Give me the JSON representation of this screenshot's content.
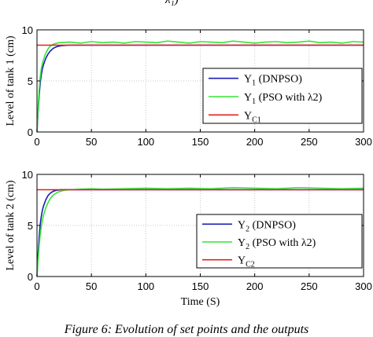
{
  "top_fragment": "λ₁)",
  "caption": "Figure 6: Evolution of set points and the outputs",
  "colors": {
    "dnpso": "#1c1cb4",
    "pso": "#33e633",
    "setpoint": "#e62020",
    "grid": "#c8c8c8"
  },
  "chart_data": [
    {
      "type": "line",
      "title": "",
      "ylabel": "Level of tank 1 (cm)",
      "xlabel": "",
      "xlim": [
        0,
        300
      ],
      "ylim": [
        0,
        10
      ],
      "xticks": [
        "0",
        "50",
        "100",
        "150",
        "200",
        "250",
        "300"
      ],
      "yticks": [
        "0",
        "5",
        "10"
      ],
      "grid": true,
      "legend_position": "lower-right",
      "series": [
        {
          "name": "Y1 (DNPSO)",
          "label_main": "Y",
          "label_sub": "1",
          "label_rest": " (DNPSO)",
          "role": "dnpso",
          "x": [
            0,
            1,
            2,
            3,
            4,
            5,
            6,
            8,
            10,
            12,
            15,
            18,
            22,
            30,
            50,
            100,
            150,
            200,
            250,
            300
          ],
          "y": [
            0,
            2.0,
            3.6,
            4.8,
            5.6,
            6.2,
            6.6,
            7.2,
            7.6,
            7.9,
            8.2,
            8.35,
            8.45,
            8.5,
            8.5,
            8.5,
            8.5,
            8.5,
            8.5,
            8.5
          ]
        },
        {
          "name": "Y1 (PSO with λ2)",
          "label_main": "Y",
          "label_sub": "1",
          "label_rest": " (PSO with λ2)",
          "role": "pso",
          "x": [
            0,
            1,
            2,
            3,
            4,
            5,
            6,
            8,
            10,
            12,
            15,
            20,
            30,
            40,
            50,
            60,
            70,
            80,
            90,
            100,
            110,
            120,
            130,
            140,
            150,
            160,
            170,
            180,
            190,
            200,
            210,
            220,
            230,
            240,
            250,
            260,
            270,
            280,
            290,
            300
          ],
          "y": [
            0,
            2.4,
            4.2,
            5.4,
            6.2,
            6.7,
            7.1,
            7.7,
            8.1,
            8.4,
            8.6,
            8.75,
            8.8,
            8.7,
            8.85,
            8.75,
            8.8,
            8.7,
            8.85,
            8.8,
            8.75,
            8.9,
            8.8,
            8.7,
            8.85,
            8.8,
            8.75,
            8.9,
            8.8,
            8.7,
            8.8,
            8.85,
            8.75,
            8.8,
            8.9,
            8.75,
            8.8,
            8.7,
            8.85,
            8.8
          ]
        },
        {
          "name": "YC1",
          "label_main": "Y",
          "label_sub": "C1",
          "label_rest": "",
          "role": "setpoint",
          "x": [
            0,
            300
          ],
          "y": [
            8.5,
            8.5
          ]
        }
      ]
    },
    {
      "type": "line",
      "title": "",
      "ylabel": "Level of tank 2 (cm)",
      "xlabel": "Time (S)",
      "xlim": [
        0,
        300
      ],
      "ylim": [
        0,
        10
      ],
      "xticks": [
        "0",
        "50",
        "100",
        "150",
        "200",
        "250",
        "300"
      ],
      "yticks": [
        "0",
        "5",
        "10"
      ],
      "grid": true,
      "legend_position": "lower-right",
      "series": [
        {
          "name": "Y2 (DNPSO)",
          "label_main": "Y",
          "label_sub": "2",
          "label_rest": " (DNPSO)",
          "role": "dnpso",
          "x": [
            0,
            1,
            2,
            3,
            4,
            5,
            6,
            8,
            10,
            12,
            15,
            18,
            22,
            30,
            50,
            100,
            150,
            200,
            250,
            300
          ],
          "y": [
            0,
            2.2,
            3.9,
            5.1,
            5.9,
            6.5,
            6.9,
            7.5,
            7.9,
            8.15,
            8.35,
            8.45,
            8.5,
            8.5,
            8.5,
            8.5,
            8.5,
            8.5,
            8.5,
            8.5
          ]
        },
        {
          "name": "Y2 (PSO with λ2)",
          "label_main": "Y",
          "label_sub": "2",
          "label_rest": " (PSO with λ2)",
          "role": "pso",
          "x": [
            0,
            1,
            2,
            3,
            4,
            5,
            6,
            8,
            10,
            12,
            15,
            20,
            25,
            30,
            40,
            50,
            60,
            80,
            100,
            120,
            140,
            160,
            180,
            200,
            220,
            240,
            260,
            280,
            300
          ],
          "y": [
            0,
            1.6,
            3.0,
            4.1,
            4.9,
            5.5,
            6.0,
            6.7,
            7.2,
            7.6,
            8.0,
            8.3,
            8.45,
            8.5,
            8.55,
            8.6,
            8.55,
            8.6,
            8.65,
            8.6,
            8.65,
            8.6,
            8.7,
            8.65,
            8.6,
            8.7,
            8.65,
            8.6,
            8.65
          ]
        },
        {
          "name": "YC2",
          "label_main": "Y",
          "label_sub": "C2",
          "label_rest": "",
          "role": "setpoint",
          "x": [
            0,
            300
          ],
          "y": [
            8.5,
            8.5
          ]
        }
      ]
    }
  ]
}
